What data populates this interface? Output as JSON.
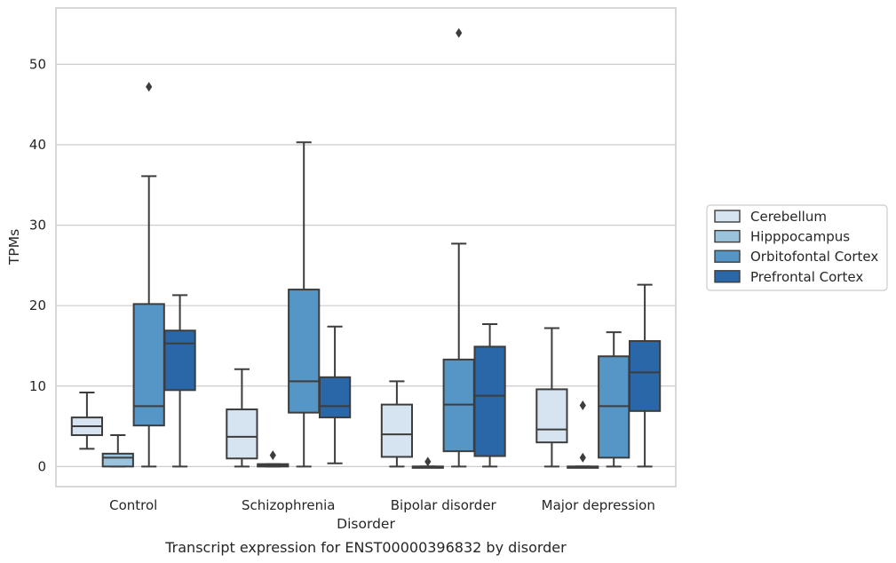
{
  "chart_data": {
    "type": "box",
    "title": "",
    "xlabel": "Disorder",
    "ylabel": "TPMs",
    "caption": "Transcript expression for ENST00000396832 by disorder",
    "ylim": [
      -2.5,
      57
    ],
    "yticks": [
      0,
      10,
      20,
      30,
      40,
      50
    ],
    "grid": "horizontal",
    "legend_position": "right",
    "categories": [
      "Control",
      "Schizophrenia",
      "Bipolar disorder",
      "Major depression"
    ],
    "series": [
      {
        "name": "Cerebellum",
        "color": "#d6e4f2",
        "boxes": [
          {
            "whislo": 2.2,
            "q1": 3.9,
            "med": 5.0,
            "q3": 6.1,
            "whishi": 9.2,
            "fliers": []
          },
          {
            "whislo": 0.0,
            "q1": 1.0,
            "med": 3.7,
            "q3": 7.1,
            "whishi": 12.1,
            "fliers": []
          },
          {
            "whislo": 0.0,
            "q1": 1.2,
            "med": 4.0,
            "q3": 7.7,
            "whishi": 10.6,
            "fliers": []
          },
          {
            "whislo": 0.0,
            "q1": 3.0,
            "med": 4.6,
            "q3": 9.6,
            "whishi": 17.2,
            "fliers": []
          }
        ]
      },
      {
        "name": "Hipppocampus",
        "color": "#9ac4dd",
        "boxes": [
          {
            "whislo": 0.0,
            "q1": 0.0,
            "med": 1.1,
            "q3": 1.6,
            "whishi": 3.9,
            "fliers": []
          },
          {
            "whislo": 0.0,
            "q1": 0.0,
            "med": 0.2,
            "q3": 0.3,
            "whishi": 0.3,
            "fliers": [
              1.4
            ]
          },
          {
            "whislo": 0.0,
            "q1": 0.0,
            "med": 0.0,
            "q3": 0.0,
            "whishi": 0.0,
            "fliers": [
              0.6
            ]
          },
          {
            "whislo": 0.0,
            "q1": 0.0,
            "med": 0.0,
            "q3": 0.0,
            "whishi": 0.0,
            "fliers": [
              7.6,
              1.1
            ]
          }
        ]
      },
      {
        "name": "Orbitofontal Cortex",
        "color": "#5596c6",
        "boxes": [
          {
            "whislo": 0.0,
            "q1": 5.1,
            "med": 7.5,
            "q3": 20.2,
            "whishi": 36.1,
            "fliers": [
              47.2
            ]
          },
          {
            "whislo": 0.0,
            "q1": 6.7,
            "med": 10.6,
            "q3": 22.0,
            "whishi": 40.3,
            "fliers": []
          },
          {
            "whislo": 0.0,
            "q1": 1.9,
            "med": 7.7,
            "q3": 13.3,
            "whishi": 27.7,
            "fliers": [
              53.9
            ]
          },
          {
            "whislo": 0.0,
            "q1": 1.1,
            "med": 7.5,
            "q3": 13.7,
            "whishi": 16.7,
            "fliers": []
          }
        ]
      },
      {
        "name": "Prefrontal Cortex",
        "color": "#2a67a9",
        "boxes": [
          {
            "whislo": 0.0,
            "q1": 9.5,
            "med": 15.3,
            "q3": 16.9,
            "whishi": 21.3,
            "fliers": []
          },
          {
            "whislo": 0.4,
            "q1": 6.1,
            "med": 7.5,
            "q3": 11.1,
            "whishi": 17.4,
            "fliers": []
          },
          {
            "whislo": 0.0,
            "q1": 1.3,
            "med": 8.8,
            "q3": 14.9,
            "whishi": 17.7,
            "fliers": []
          },
          {
            "whislo": 0.0,
            "q1": 6.9,
            "med": 11.7,
            "q3": 15.6,
            "whishi": 22.6,
            "fliers": []
          }
        ]
      }
    ]
  }
}
